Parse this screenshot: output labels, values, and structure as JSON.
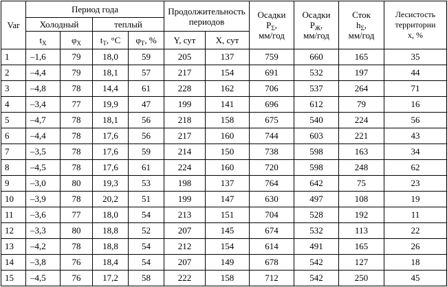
{
  "table": {
    "header": {
      "var": "Var",
      "period": "Период года",
      "cold": "Холодный",
      "warm": "теплый",
      "duration": "Продолжительность периодов",
      "columns": [
        {
          "symbol": "t",
          "sub": "Х"
        },
        {
          "symbol": "φ",
          "sub": "Х"
        },
        {
          "symbol": "t",
          "sub": "Т",
          "rest": ", °С"
        },
        {
          "symbol": "φ",
          "sub": "Т",
          "rest": ", %"
        },
        {
          "symbol": "Y, сут"
        },
        {
          "symbol": "X, сут"
        }
      ],
      "tall": [
        {
          "title": "Осадки",
          "symbol": "P",
          "sub": "Σ",
          "rest": ",",
          "unit": "мм/год"
        },
        {
          "title": "Осадки",
          "symbol": "P",
          "sub": "Ж",
          "rest": ",",
          "unit": "мм/год"
        },
        {
          "title": "Сток",
          "symbol": "h",
          "sub": "Σ",
          "rest": ",",
          "unit": "мм/год"
        },
        {
          "title": "Лесистость территории",
          "symbol": "x",
          "rest": ", %"
        }
      ]
    },
    "rows": [
      [
        "1",
        "–1,6",
        "79",
        "18,0",
        "59",
        "205",
        "137",
        "759",
        "660",
        "165",
        "35"
      ],
      [
        "2",
        "–4,4",
        "79",
        "18,1",
        "57",
        "217",
        "154",
        "691",
        "532",
        "197",
        "44"
      ],
      [
        "3",
        "–4,8",
        "78",
        "14,4",
        "61",
        "228",
        "162",
        "706",
        "537",
        "264",
        "71"
      ],
      [
        "4",
        "–3,4",
        "77",
        "19,9",
        "47",
        "199",
        "141",
        "696",
        "612",
        "79",
        "16"
      ],
      [
        "5",
        "–4,7",
        "78",
        "18,1",
        "56",
        "218",
        "158",
        "675",
        "540",
        "224",
        "56"
      ],
      [
        "6",
        "–4,4",
        "78",
        "17,6",
        "56",
        "217",
        "160",
        "744",
        "603",
        "221",
        "43"
      ],
      [
        "7",
        "–3,5",
        "78",
        "17,6",
        "59",
        "214",
        "150",
        "738",
        "598",
        "163",
        "34"
      ],
      [
        "8",
        "–4,5",
        "78",
        "17,6",
        "61",
        "224",
        "160",
        "720",
        "598",
        "248",
        "62"
      ],
      [
        "9",
        "–3,0",
        "80",
        "19,3",
        "53",
        "198",
        "137",
        "764",
        "642",
        "75",
        "23"
      ],
      [
        "10",
        "–3,9",
        "78",
        "20,2",
        "51",
        "199",
        "147",
        "630",
        "497",
        "108",
        "19"
      ],
      [
        "11",
        "–3,6",
        "77",
        "18,0",
        "54",
        "213",
        "151",
        "704",
        "528",
        "192",
        "11"
      ],
      [
        "12",
        "–3,3",
        "80",
        "18,8",
        "52",
        "207",
        "145",
        "674",
        "532",
        "113",
        "22"
      ],
      [
        "13",
        "–4,2",
        "78",
        "18,8",
        "54",
        "212",
        "154",
        "614",
        "491",
        "165",
        "26"
      ],
      [
        "14",
        "–3,8",
        "76",
        "18,4",
        "54",
        "207",
        "149",
        "678",
        "542",
        "127",
        "18"
      ],
      [
        "15",
        "–4,5",
        "76",
        "17,2",
        "58",
        "222",
        "158",
        "712",
        "542",
        "250",
        "45"
      ]
    ]
  }
}
